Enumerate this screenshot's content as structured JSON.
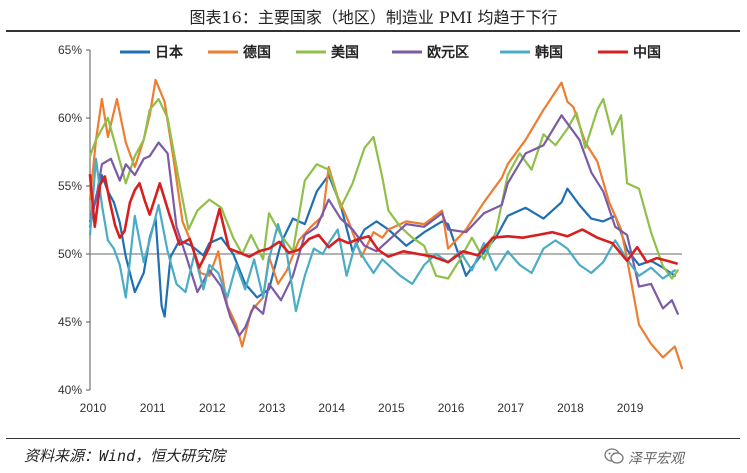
{
  "title": "图表16：主要国家（地区）制造业 PMI 均趋于下行",
  "source": "资料来源：Wind，恒大研究院",
  "watermark": "泽平宏观",
  "chart_data": {
    "type": "line",
    "title": "图表16：主要国家（地区）制造业 PMI 均趋于下行",
    "xlabel": "",
    "ylabel": "",
    "xlim": [
      2010,
      2019.92
    ],
    "ylim": [
      40,
      65
    ],
    "reference_line": 50,
    "y_ticks": [
      "40%",
      "45%",
      "50%",
      "55%",
      "60%",
      "65%"
    ],
    "x_ticks": [
      "2010",
      "2011",
      "2012",
      "2013",
      "2014",
      "2015",
      "2016",
      "2017",
      "2018",
      "2019"
    ],
    "legend": "top",
    "series": [
      {
        "name": "日本",
        "color": "#1f6fb2",
        "x": [
          2010.0,
          2010.1,
          2010.2,
          2010.3,
          2010.4,
          2010.5,
          2010.6,
          2010.75,
          2010.9,
          2011.0,
          2011.1,
          2011.2,
          2011.25,
          2011.35,
          2011.5,
          2011.7,
          2011.9,
          2012.0,
          2012.2,
          2012.4,
          2012.6,
          2012.8,
          2013.0,
          2013.2,
          2013.4,
          2013.6,
          2013.8,
          2014.0,
          2014.2,
          2014.4,
          2014.6,
          2014.8,
          2015.0,
          2015.3,
          2015.6,
          2015.9,
          2016.0,
          2016.3,
          2016.5,
          2016.8,
          2017.0,
          2017.3,
          2017.6,
          2017.9,
          2018.0,
          2018.2,
          2018.4,
          2018.6,
          2018.8,
          2019.0,
          2019.2,
          2019.4,
          2019.6,
          2019.8
        ],
        "values": [
          52.0,
          54.2,
          55.8,
          54.6,
          53.8,
          52.3,
          49.8,
          47.2,
          48.6,
          51.2,
          52.6,
          46.2,
          45.4,
          49.8,
          51.0,
          50.6,
          49.9,
          50.8,
          51.2,
          50.0,
          47.8,
          46.8,
          47.4,
          50.8,
          52.6,
          52.2,
          54.6,
          55.8,
          53.6,
          50.2,
          51.8,
          52.4,
          51.8,
          50.6,
          51.6,
          52.4,
          52.2,
          48.4,
          49.6,
          51.2,
          52.8,
          53.4,
          52.6,
          53.8,
          54.8,
          53.6,
          52.6,
          52.4,
          52.8,
          50.3,
          49.2,
          49.5,
          49.0,
          48.4
        ]
      },
      {
        "name": "德国",
        "color": "#ee7d31",
        "x": [
          2010.0,
          2010.1,
          2010.2,
          2010.3,
          2010.45,
          2010.6,
          2010.75,
          2010.9,
          2011.0,
          2011.1,
          2011.25,
          2011.4,
          2011.55,
          2011.7,
          2011.85,
          2012.0,
          2012.15,
          2012.3,
          2012.45,
          2012.55,
          2012.7,
          2012.9,
          2013.0,
          2013.15,
          2013.3,
          2013.5,
          2013.7,
          2013.9,
          2014.0,
          2014.15,
          2014.35,
          2014.55,
          2014.75,
          2014.9,
          2015.0,
          2015.3,
          2015.6,
          2015.9,
          2016.0,
          2016.3,
          2016.6,
          2016.9,
          2017.0,
          2017.3,
          2017.6,
          2017.9,
          2018.0,
          2018.1,
          2018.3,
          2018.5,
          2018.7,
          2018.9,
          2019.0,
          2019.2,
          2019.4,
          2019.6,
          2019.8,
          2019.92
        ],
        "values": [
          54.0,
          58.4,
          61.4,
          58.6,
          61.4,
          58.2,
          56.4,
          58.4,
          60.2,
          62.8,
          61.2,
          57.0,
          52.4,
          50.8,
          48.6,
          48.4,
          50.2,
          46.2,
          44.8,
          43.2,
          45.8,
          46.8,
          49.8,
          47.8,
          48.8,
          51.0,
          52.0,
          52.8,
          56.4,
          54.2,
          52.2,
          49.8,
          51.6,
          51.2,
          51.8,
          52.4,
          52.2,
          53.2,
          50.4,
          51.8,
          53.8,
          55.6,
          56.6,
          58.4,
          60.6,
          62.6,
          61.2,
          60.8,
          58.2,
          56.8,
          53.8,
          51.8,
          49.6,
          44.8,
          43.4,
          42.4,
          43.2,
          41.6
        ]
      },
      {
        "name": "美国",
        "color": "#8fc04b",
        "x": [
          2010.0,
          2010.1,
          2010.3,
          2010.45,
          2010.6,
          2010.75,
          2010.9,
          2011.0,
          2011.15,
          2011.3,
          2011.5,
          2011.65,
          2011.8,
          2012.0,
          2012.2,
          2012.4,
          2012.55,
          2012.7,
          2012.9,
          2013.0,
          2013.2,
          2013.4,
          2013.6,
          2013.8,
          2014.0,
          2014.2,
          2014.4,
          2014.6,
          2014.75,
          2014.9,
          2015.0,
          2015.2,
          2015.4,
          2015.6,
          2015.8,
          2016.0,
          2016.2,
          2016.4,
          2016.6,
          2016.8,
          2017.0,
          2017.2,
          2017.4,
          2017.6,
          2017.8,
          2018.0,
          2018.15,
          2018.3,
          2018.5,
          2018.6,
          2018.75,
          2018.9,
          2019.0,
          2019.2,
          2019.4,
          2019.6,
          2019.75,
          2019.85
        ],
        "values": [
          57.2,
          58.4,
          60.0,
          57.6,
          55.2,
          57.2,
          58.4,
          60.6,
          61.4,
          60.0,
          55.2,
          51.8,
          53.2,
          54.0,
          53.4,
          51.2,
          50.0,
          51.4,
          49.6,
          53.0,
          51.4,
          50.2,
          55.4,
          56.6,
          56.2,
          53.4,
          55.2,
          57.8,
          58.6,
          55.6,
          53.2,
          52.0,
          51.2,
          50.6,
          48.4,
          48.2,
          49.6,
          51.2,
          49.6,
          51.6,
          55.8,
          57.4,
          56.2,
          58.8,
          58.0,
          59.2,
          60.4,
          57.8,
          60.6,
          61.4,
          58.8,
          60.2,
          55.2,
          54.8,
          51.6,
          49.1,
          48.2,
          48.8
        ]
      },
      {
        "name": "欧元区",
        "color": "#7b5aa6",
        "x": [
          2010.0,
          2010.1,
          2010.2,
          2010.35,
          2010.5,
          2010.6,
          2010.75,
          2010.9,
          2011.0,
          2011.15,
          2011.3,
          2011.45,
          2011.6,
          2011.8,
          2012.0,
          2012.2,
          2012.35,
          2012.5,
          2012.6,
          2012.75,
          2012.9,
          2013.0,
          2013.2,
          2013.4,
          2013.6,
          2013.8,
          2014.0,
          2014.2,
          2014.4,
          2014.6,
          2014.8,
          2015.0,
          2015.3,
          2015.6,
          2015.9,
          2016.0,
          2016.3,
          2016.6,
          2016.9,
          2017.0,
          2017.3,
          2017.6,
          2017.9,
          2018.0,
          2018.2,
          2018.4,
          2018.6,
          2018.8,
          2019.0,
          2019.2,
          2019.4,
          2019.6,
          2019.75,
          2019.85
        ],
        "values": [
          52.4,
          54.0,
          56.6,
          57.0,
          55.4,
          56.6,
          55.8,
          57.0,
          57.2,
          58.2,
          57.4,
          52.0,
          50.0,
          47.2,
          48.8,
          47.6,
          45.4,
          44.0,
          44.6,
          46.2,
          45.6,
          47.8,
          46.6,
          48.4,
          51.4,
          52.0,
          54.0,
          52.6,
          51.8,
          50.6,
          50.2,
          51.0,
          52.2,
          52.0,
          53.0,
          51.8,
          51.6,
          53.0,
          53.6,
          55.2,
          57.4,
          58.0,
          60.2,
          59.6,
          58.4,
          56.0,
          54.6,
          52.0,
          51.4,
          47.6,
          47.8,
          46.0,
          46.6,
          45.6
        ]
      },
      {
        "name": "韩国",
        "color": "#4bacc6",
        "x": [
          2010.0,
          2010.1,
          2010.2,
          2010.3,
          2010.4,
          2010.5,
          2010.6,
          2010.75,
          2010.9,
          2011.0,
          2011.15,
          2011.3,
          2011.45,
          2011.6,
          2011.75,
          2011.9,
          2012.0,
          2012.15,
          2012.3,
          2012.45,
          2012.6,
          2012.75,
          2012.9,
          2013.0,
          2013.15,
          2013.3,
          2013.45,
          2013.6,
          2013.75,
          2013.9,
          2014.0,
          2014.15,
          2014.3,
          2014.45,
          2014.6,
          2014.75,
          2014.9,
          2015.0,
          2015.2,
          2015.4,
          2015.6,
          2015.8,
          2016.0,
          2016.2,
          2016.4,
          2016.6,
          2016.8,
          2017.0,
          2017.2,
          2017.4,
          2017.6,
          2017.8,
          2018.0,
          2018.2,
          2018.4,
          2018.6,
          2018.8,
          2019.0,
          2019.2,
          2019.4,
          2019.6,
          2019.8
        ],
        "values": [
          51.4,
          57.0,
          53.6,
          51.0,
          50.4,
          49.2,
          46.8,
          52.8,
          49.4,
          51.0,
          53.6,
          50.2,
          47.8,
          47.2,
          50.0,
          47.4,
          49.2,
          48.6,
          46.8,
          49.2,
          47.4,
          49.6,
          46.8,
          49.6,
          52.2,
          50.0,
          45.8,
          48.4,
          50.4,
          50.0,
          50.8,
          51.8,
          48.4,
          50.8,
          49.6,
          48.6,
          49.6,
          49.2,
          48.4,
          47.8,
          49.2,
          50.0,
          49.4,
          50.2,
          48.8,
          50.8,
          48.8,
          50.2,
          49.2,
          48.6,
          50.4,
          51.0,
          50.4,
          49.2,
          48.6,
          49.4,
          51.0,
          49.6,
          48.4,
          49.0,
          48.2,
          48.8
        ]
      },
      {
        "name": "中国",
        "color": "#d62020",
        "x": [
          2010.0,
          2010.08,
          2010.17,
          2010.25,
          2010.33,
          2010.42,
          2010.5,
          2010.58,
          2010.67,
          2010.75,
          2010.83,
          2010.92,
          2011.0,
          2011.17,
          2011.33,
          2011.5,
          2011.67,
          2011.83,
          2012.0,
          2012.17,
          2012.33,
          2012.5,
          2012.67,
          2012.83,
          2013.0,
          2013.17,
          2013.33,
          2013.5,
          2013.67,
          2013.83,
          2014.0,
          2014.17,
          2014.33,
          2014.5,
          2014.67,
          2014.83,
          2015.0,
          2015.25,
          2015.5,
          2015.75,
          2016.0,
          2016.25,
          2016.5,
          2016.75,
          2017.0,
          2017.25,
          2017.5,
          2017.75,
          2018.0,
          2018.25,
          2018.5,
          2018.75,
          2019.0,
          2019.17,
          2019.33,
          2019.5,
          2019.67,
          2019.83
        ],
        "values": [
          55.8,
          52.0,
          55.1,
          55.7,
          53.9,
          52.1,
          51.2,
          51.7,
          53.8,
          54.7,
          55.2,
          53.9,
          52.9,
          55.2,
          52.9,
          50.7,
          51.1,
          49.0,
          50.5,
          53.3,
          50.4,
          50.1,
          49.8,
          50.2,
          50.4,
          50.9,
          50.1,
          50.3,
          51.1,
          51.4,
          50.5,
          51.1,
          50.8,
          51.1,
          51.3,
          50.3,
          49.8,
          50.2,
          50.0,
          49.8,
          49.4,
          50.2,
          49.9,
          51.2,
          51.3,
          51.2,
          51.4,
          51.6,
          51.3,
          51.8,
          51.2,
          50.8,
          49.5,
          50.5,
          49.4,
          49.7,
          49.5,
          49.3
        ]
      }
    ]
  }
}
